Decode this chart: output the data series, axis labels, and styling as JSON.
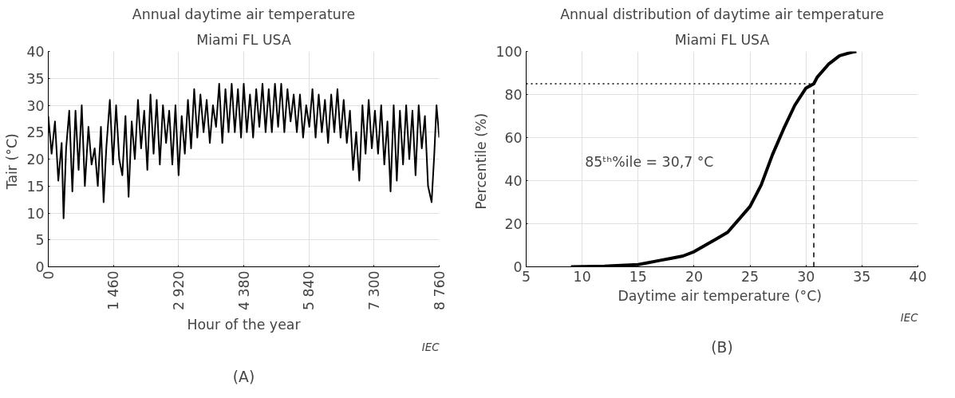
{
  "chart_data": [
    {
      "type": "line",
      "title": "Annual daytime air temperature",
      "subtitle": "Miami FL USA",
      "xlabel": "Hour of the year",
      "ylabel": "Tair  (°C)",
      "annotations": [
        "IEC",
        "(A)"
      ],
      "x": [
        0,
        75,
        150,
        225,
        300,
        343,
        400,
        470,
        540,
        610,
        680,
        750,
        820,
        900,
        970,
        1040,
        1110,
        1180,
        1240,
        1300,
        1380,
        1450,
        1520,
        1590,
        1660,
        1730,
        1800,
        1870,
        1940,
        2010,
        2080,
        2150,
        2220,
        2290,
        2360,
        2430,
        2500,
        2570,
        2640,
        2710,
        2780,
        2850,
        2920,
        2990,
        3060,
        3130,
        3200,
        3270,
        3340,
        3410,
        3480,
        3550,
        3620,
        3690,
        3760,
        3830,
        3900,
        3970,
        4040,
        4110,
        4180,
        4250,
        4320,
        4380,
        4450,
        4520,
        4590,
        4660,
        4730,
        4800,
        4870,
        4940,
        5010,
        5080,
        5150,
        5220,
        5290,
        5360,
        5430,
        5500,
        5570,
        5640,
        5710,
        5780,
        5850,
        5920,
        5990,
        6060,
        6130,
        6200,
        6270,
        6340,
        6410,
        6480,
        6550,
        6620,
        6690,
        6760,
        6830,
        6900,
        6970,
        7040,
        7110,
        7180,
        7250,
        7320,
        7390,
        7460,
        7530,
        7600,
        7670,
        7740,
        7810,
        7880,
        7950,
        8020,
        8090,
        8160,
        8230,
        8300,
        8370,
        8440,
        8510,
        8590,
        8650,
        8700,
        8760
      ],
      "series": [
        {
          "color": "#000000",
          "values": [
            28,
            21,
            27,
            16,
            23,
            9,
            22,
            29,
            14,
            29,
            18,
            30,
            15,
            26,
            19,
            22,
            15,
            26,
            12,
            22,
            31,
            19,
            30,
            20,
            17,
            28,
            13,
            27,
            20,
            31,
            22,
            29,
            18,
            32,
            21,
            31,
            19,
            30,
            23,
            29,
            19,
            30,
            17,
            28,
            21,
            31,
            22,
            33,
            24,
            32,
            25,
            31,
            23,
            30,
            26,
            34,
            23,
            33,
            25,
            34,
            25,
            33,
            24,
            34,
            25,
            32,
            24,
            33,
            26,
            34,
            25,
            33,
            25,
            34,
            26,
            34,
            25,
            33,
            27,
            32,
            25,
            32,
            24,
            30,
            26,
            33,
            24,
            32,
            25,
            31,
            23,
            32,
            25,
            33,
            24,
            31,
            23,
            29,
            18,
            25,
            16,
            30,
            21,
            31,
            22,
            29,
            21,
            30,
            19,
            27,
            14,
            30,
            16,
            29,
            19,
            30,
            20,
            29,
            17,
            30,
            22,
            28,
            15,
            12,
            21,
            30,
            24
          ]
        }
      ],
      "xlim": [
        0,
        8760
      ],
      "ylim": [
        0,
        40
      ],
      "xticks": [
        0,
        {
          "value": 1460,
          "label": "1 460"
        },
        {
          "value": 2920,
          "label": "2 920"
        },
        {
          "value": 4380,
          "label": "4 380"
        },
        {
          "value": 5840,
          "label": "5 840"
        },
        {
          "value": 7300,
          "label": "7 300"
        },
        {
          "value": 8760,
          "label": "8 760"
        }
      ],
      "yticks": [
        0,
        5,
        10,
        15,
        20,
        25,
        30,
        35,
        40
      ],
      "grid": true,
      "line_style": "solid"
    },
    {
      "type": "line",
      "title": "Annual distribution of daytime air temperature",
      "subtitle": "Miami FL USA",
      "xlabel": "Daytime air temperature  (°C)",
      "ylabel": "Percentile  (%)",
      "annotations": [
        "85ᵗʰ%ile = 30,7 °C",
        "IEC",
        "(B)"
      ],
      "x": [
        9,
        12,
        15,
        17,
        18,
        19,
        20,
        21,
        22,
        23,
        24,
        25,
        26,
        27,
        28,
        29,
        30,
        30.7,
        31,
        32,
        33,
        34,
        34.5
      ],
      "series": [
        {
          "color": "#000000",
          "values": [
            0,
            0.3,
            1,
            3,
            4,
            5,
            7,
            10,
            13,
            16,
            22,
            28,
            38,
            52,
            64,
            75,
            83,
            85,
            88,
            94,
            98,
            99.5,
            100
          ]
        }
      ],
      "xlim": [
        5,
        40
      ],
      "ylim": [
        0,
        100
      ],
      "xticks": [
        5,
        10,
        15,
        20,
        25,
        30,
        35,
        40
      ],
      "yticks": [
        0,
        20,
        40,
        60,
        80,
        100
      ],
      "grid": true,
      "line_style": "solid",
      "ref_lines": [
        {
          "axis": "y",
          "value": 85,
          "line_style": "dotted"
        },
        {
          "axis": "x",
          "value": 30.7,
          "line_style": "dashed"
        }
      ]
    }
  ]
}
